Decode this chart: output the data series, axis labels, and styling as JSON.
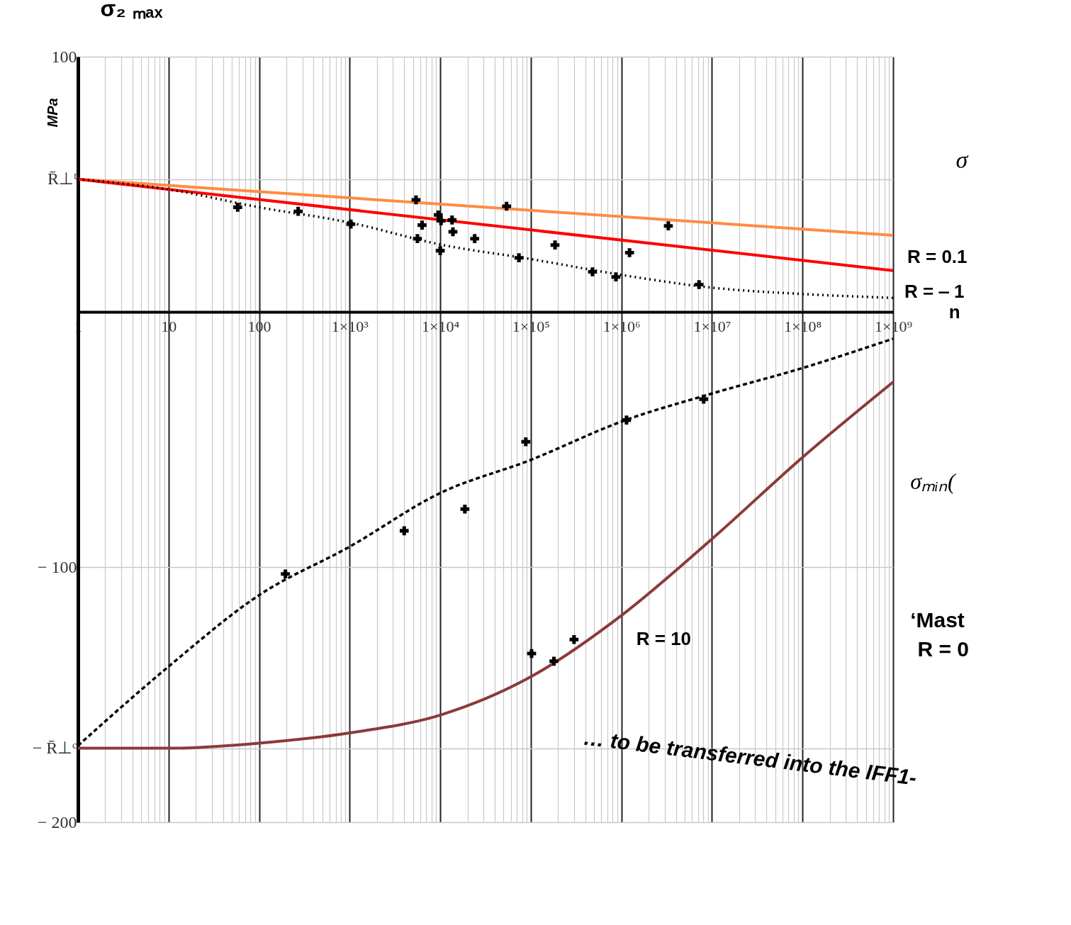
{
  "chart_data": {
    "type": "line",
    "ylabel": "σ₂ ₘₐₓ",
    "xlabel": "n",
    "log": "x",
    "grid": true,
    "marker": "none",
    "xlim": [
      1,
      1000000000
    ],
    "ylim": [
      -200,
      100
    ],
    "xticks": [
      1,
      {
        "value": 2,
        "label": null
      },
      {
        "value": 3,
        "label": null
      },
      {
        "value": 4,
        "label": null
      },
      {
        "value": 5,
        "label": null
      },
      {
        "value": 6,
        "label": null
      },
      {
        "value": 7,
        "label": null
      },
      {
        "value": 8,
        "label": null
      },
      {
        "value": 9,
        "label": null
      },
      10,
      {
        "value": 20,
        "label": null
      },
      {
        "value": 30,
        "label": null
      },
      {
        "value": 40,
        "label": null
      },
      {
        "value": 50,
        "label": null
      },
      {
        "value": 60,
        "label": null
      },
      {
        "value": 70,
        "label": null
      },
      {
        "value": 80,
        "label": null
      },
      {
        "value": 90,
        "label": null
      },
      100,
      {
        "value": 200,
        "label": null
      },
      {
        "value": 300,
        "label": null
      },
      {
        "value": 400,
        "label": null
      },
      {
        "value": 500,
        "label": null
      },
      {
        "value": 600,
        "label": null
      },
      {
        "value": 700,
        "label": null
      },
      {
        "value": 800,
        "label": null
      },
      {
        "value": 900,
        "label": null
      },
      {
        "value": 1000,
        "label": "1×10³"
      },
      {
        "value": 2000,
        "label": null
      },
      {
        "value": 3000,
        "label": null
      },
      {
        "value": 4000,
        "label": null
      },
      {
        "value": 5000,
        "label": null
      },
      {
        "value": 6000,
        "label": null
      },
      {
        "value": 7000,
        "label": null
      },
      {
        "value": 8000,
        "label": null
      },
      {
        "value": 9000,
        "label": null
      },
      {
        "value": 10000,
        "label": "1×10⁴"
      },
      {
        "value": 20000,
        "label": null
      },
      {
        "value": 30000,
        "label": null
      },
      {
        "value": 40000,
        "label": null
      },
      {
        "value": 50000,
        "label": null
      },
      {
        "value": 60000,
        "label": null
      },
      {
        "value": 70000,
        "label": null
      },
      {
        "value": 80000,
        "label": null
      },
      {
        "value": 90000,
        "label": null
      },
      {
        "value": 100000,
        "label": "1×10⁵"
      },
      {
        "value": 200000,
        "label": null
      },
      {
        "value": 300000,
        "label": null
      },
      {
        "value": 400000,
        "label": null
      },
      {
        "value": 500000,
        "label": null
      },
      {
        "value": 600000,
        "label": null
      },
      {
        "value": 700000,
        "label": null
      },
      {
        "value": 800000,
        "label": null
      },
      {
        "value": 900000,
        "label": null
      },
      {
        "value": 1000000,
        "label": "1×10⁶"
      },
      {
        "value": 2000000,
        "label": null
      },
      {
        "value": 3000000,
        "label": null
      },
      {
        "value": 4000000,
        "label": null
      },
      {
        "value": 5000000,
        "label": null
      },
      {
        "value": 6000000,
        "label": null
      },
      {
        "value": 7000000,
        "label": null
      },
      {
        "value": 8000000,
        "label": null
      },
      {
        "value": 9000000,
        "label": null
      },
      {
        "value": 10000000,
        "label": "1×10⁷"
      },
      {
        "value": 20000000,
        "label": null
      },
      {
        "value": 30000000,
        "label": null
      },
      {
        "value": 40000000,
        "label": null
      },
      {
        "value": 50000000,
        "label": null
      },
      {
        "value": 60000000,
        "label": null
      },
      {
        "value": 70000000,
        "label": null
      },
      {
        "value": 80000000,
        "label": null
      },
      {
        "value": 90000000,
        "label": null
      },
      {
        "value": 100000000,
        "label": "1×10⁸"
      },
      {
        "value": 200000000,
        "label": null
      },
      {
        "value": 300000000,
        "label": null
      },
      {
        "value": 400000000,
        "label": null
      },
      {
        "value": 500000000,
        "label": null
      },
      {
        "value": 600000000,
        "label": null
      },
      {
        "value": 700000000,
        "label": null
      },
      {
        "value": 800000000,
        "label": null
      },
      {
        "value": 900000000,
        "label": null
      },
      {
        "value": 1000000000,
        "label": "1×10⁹"
      }
    ],
    "yticks": [
      100,
      {
        "value": 52,
        "label": "R̄⊥ᵗ"
      },
      {
        "value": -100,
        "label": "− 100"
      },
      {
        "value": -171,
        "label": "− R̄⊥ᶜ"
      },
      {
        "value": -200,
        "label": "− 200"
      }
    ],
    "series": [
      {
        "color": "#ff8c42",
        "line_style": "solid",
        "x": [
          1,
          1000000000
        ],
        "values": [
          52,
          30
        ]
      },
      {
        "color": "#ff0000",
        "line_style": "solid",
        "x": [
          1,
          1000000000
        ],
        "values": [
          52,
          16.2
        ]
      },
      {
        "color": "#000000",
        "line_style": "dotted",
        "x": [
          1,
          10,
          100,
          1000,
          10000,
          100000,
          1000000,
          10000000,
          100000000,
          1000000000
        ],
        "values": [
          52,
          48,
          41,
          35,
          26.4,
          20.7,
          14.5,
          9.5,
          7,
          5.5
        ]
      },
      {
        "color": "#000000",
        "line_style": "dashed",
        "x": [
          1,
          10,
          100,
          1000,
          10000,
          100000,
          1000000,
          10000000,
          100000000,
          1000000000
        ],
        "values": [
          -170,
          -139,
          -111,
          -92,
          -71,
          -58,
          -43,
          -32,
          -22,
          -10.5
        ]
      },
      {
        "color": "#8b3a3a",
        "line_style": "solid",
        "x": [
          1,
          10,
          100,
          1000,
          10000,
          100000,
          1000000,
          10000000,
          100000000,
          1000000000
        ],
        "values": [
          -171,
          -171,
          -169,
          -165,
          -158,
          -143,
          -119,
          -89,
          -57,
          -27.5
        ]
      },
      {
        "type": "scatter",
        "color": "#000000",
        "marker": "cross",
        "x": [
          58,
          270,
          1030,
          5400,
          5600,
          6300,
          9500,
          10000,
          10200,
          13500,
          13800,
          24000,
          54000,
          74000,
          185000,
          480000,
          870000,
          1230000,
          3300000,
          7200000,
          195,
          4000,
          18700,
          88000,
          102000,
          180000,
          300000,
          1140000,
          8100000
        ],
        "values": [
          41,
          39.4,
          34.4,
          43.9,
          28.7,
          34,
          38,
          24,
          35.7,
          36,
          31.4,
          28.7,
          41.4,
          21.2,
          26.2,
          15.7,
          13.7,
          23.2,
          33.7,
          10.7,
          -102.7,
          -85.8,
          -77.3,
          -50.9,
          -133.9,
          -136.9,
          -128.4,
          -42.4,
          -34.2
        ]
      }
    ],
    "annotations": [
      "MPa",
      "σ",
      "R = 0.1",
      "R = ‒ 1",
      "σₘᵢₙ(",
      "‘Mast",
      "R = 0",
      "… to be transferred into the IFF1-",
      "R = 10"
    ]
  }
}
